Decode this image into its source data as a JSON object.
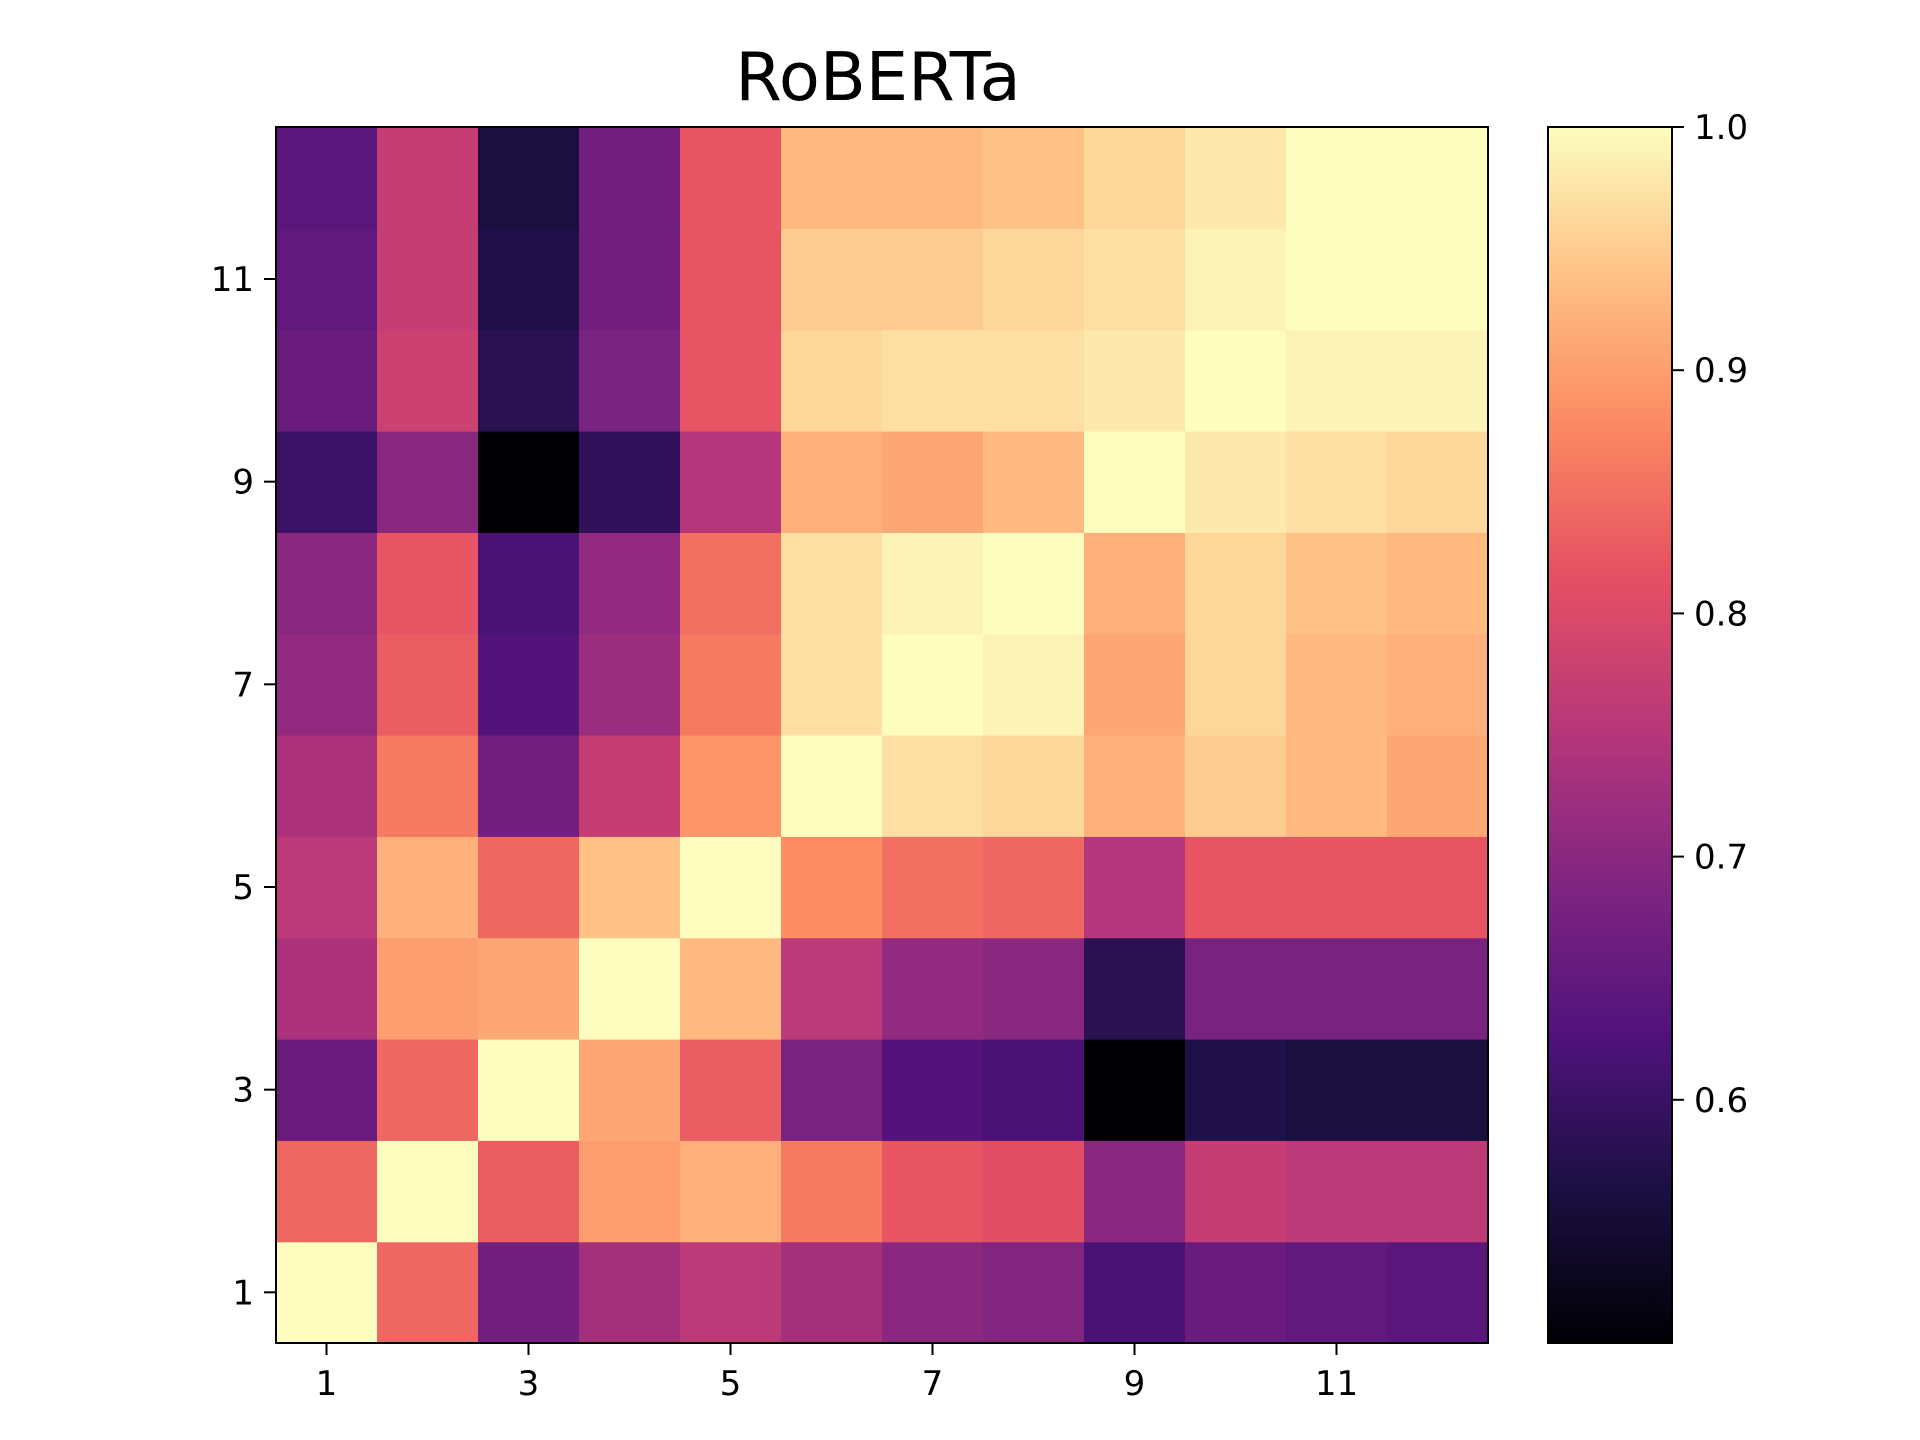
{
  "chart_data": {
    "type": "heatmap",
    "title": "RoBERTa",
    "xlabel": "",
    "ylabel": "",
    "x": [
      1,
      2,
      3,
      4,
      5,
      6,
      7,
      8,
      9,
      10,
      11,
      12
    ],
    "y": [
      1,
      2,
      3,
      4,
      5,
      6,
      7,
      8,
      9,
      10,
      11,
      12
    ],
    "x_tick_labels": [
      "1",
      "3",
      "5",
      "7",
      "9",
      "11"
    ],
    "y_tick_labels": [
      "1",
      "3",
      "5",
      "7",
      "9",
      "11"
    ],
    "colormap": "magma",
    "vmin": 0.5,
    "vmax": 1.0,
    "colorbar_ticks": [
      "0.6",
      "0.7",
      "0.8",
      "0.9",
      "1.0"
    ],
    "values": [
      [
        1.0,
        0.84,
        0.67,
        0.73,
        0.76,
        0.73,
        0.7,
        0.69,
        0.62,
        0.66,
        0.65,
        0.64
      ],
      [
        0.84,
        1.0,
        0.83,
        0.9,
        0.92,
        0.86,
        0.82,
        0.81,
        0.7,
        0.77,
        0.76,
        0.76
      ],
      [
        0.66,
        0.84,
        1.0,
        0.91,
        0.83,
        0.68,
        0.63,
        0.62,
        0.5,
        0.57,
        0.56,
        0.56
      ],
      [
        0.74,
        0.9,
        0.91,
        1.0,
        0.93,
        0.76,
        0.71,
        0.7,
        0.58,
        0.68,
        0.68,
        0.68
      ],
      [
        0.76,
        0.92,
        0.84,
        0.94,
        1.0,
        0.88,
        0.85,
        0.84,
        0.75,
        0.82,
        0.82,
        0.82
      ],
      [
        0.74,
        0.86,
        0.67,
        0.77,
        0.89,
        1.0,
        0.97,
        0.96,
        0.92,
        0.95,
        0.93,
        0.91
      ],
      [
        0.71,
        0.83,
        0.63,
        0.72,
        0.86,
        0.97,
        1.0,
        0.99,
        0.91,
        0.96,
        0.93,
        0.92
      ],
      [
        0.7,
        0.82,
        0.62,
        0.71,
        0.85,
        0.97,
        0.99,
        1.0,
        0.92,
        0.96,
        0.94,
        0.93
      ],
      [
        0.6,
        0.7,
        0.5,
        0.59,
        0.75,
        0.92,
        0.91,
        0.93,
        1.0,
        0.98,
        0.97,
        0.96
      ],
      [
        0.66,
        0.78,
        0.58,
        0.68,
        0.82,
        0.96,
        0.97,
        0.97,
        0.98,
        1.0,
        0.99,
        0.99
      ],
      [
        0.65,
        0.77,
        0.57,
        0.67,
        0.82,
        0.95,
        0.95,
        0.96,
        0.97,
        0.99,
        1.0,
        1.0
      ],
      [
        0.64,
        0.77,
        0.56,
        0.67,
        0.82,
        0.93,
        0.93,
        0.94,
        0.96,
        0.98,
        1.0,
        1.0
      ]
    ]
  }
}
